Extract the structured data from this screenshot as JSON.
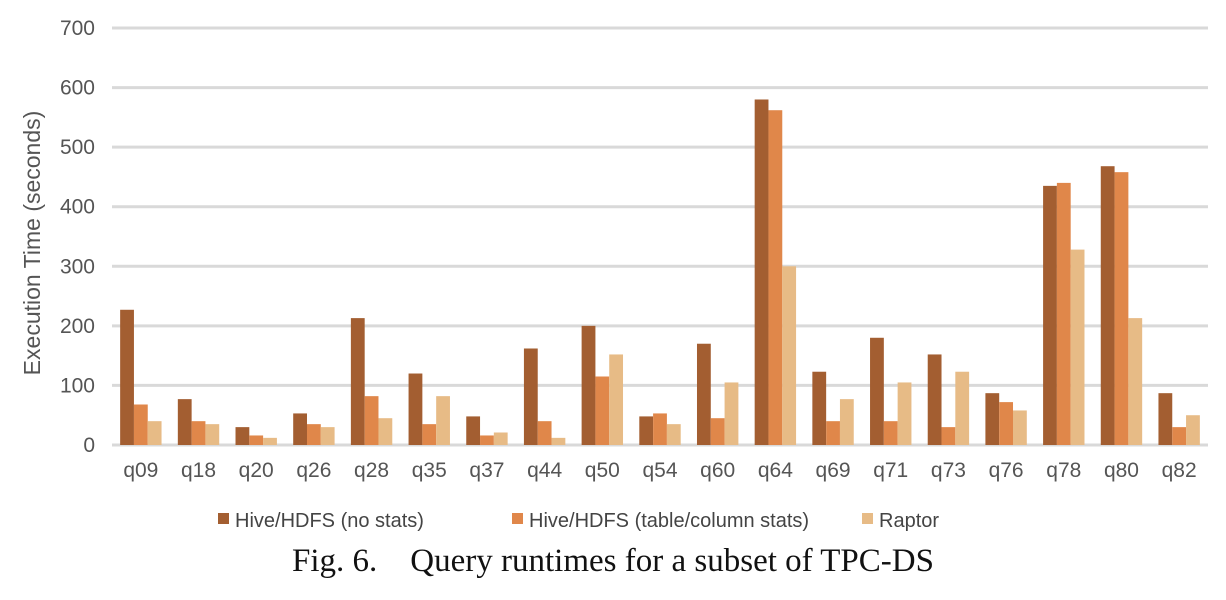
{
  "chart_data": {
    "type": "bar",
    "title": "",
    "xlabel": "",
    "ylabel": "Execution Time (seconds)",
    "ylim": [
      0,
      700
    ],
    "yticks": [
      0,
      100,
      200,
      300,
      400,
      500,
      600,
      700
    ],
    "grid": true,
    "legend_position": "bottom",
    "categories": [
      "q09",
      "q18",
      "q20",
      "q26",
      "q28",
      "q35",
      "q37",
      "q44",
      "q50",
      "q54",
      "q60",
      "q64",
      "q69",
      "q71",
      "q73",
      "q76",
      "q78",
      "q80",
      "q82"
    ],
    "series": [
      {
        "name": "Hive/HDFS (no stats)",
        "color": "#A35E31",
        "values": [
          227,
          77,
          30,
          53,
          213,
          120,
          48,
          162,
          200,
          48,
          170,
          580,
          123,
          180,
          152,
          87,
          435,
          468,
          87
        ]
      },
      {
        "name": "Hive/HDFS (table/column stats)",
        "color": "#E0874A",
        "values": [
          68,
          40,
          16,
          35,
          82,
          35,
          16,
          40,
          115,
          53,
          45,
          562,
          40,
          40,
          30,
          72,
          440,
          458,
          30
        ]
      },
      {
        "name": "Raptor",
        "color": "#E7BB86",
        "values": [
          40,
          35,
          12,
          30,
          45,
          82,
          21,
          12,
          152,
          35,
          105,
          300,
          77,
          105,
          123,
          58,
          328,
          213,
          50
        ]
      }
    ]
  },
  "caption": "Fig. 6. Query runtimes for a subset of TPC-DS"
}
